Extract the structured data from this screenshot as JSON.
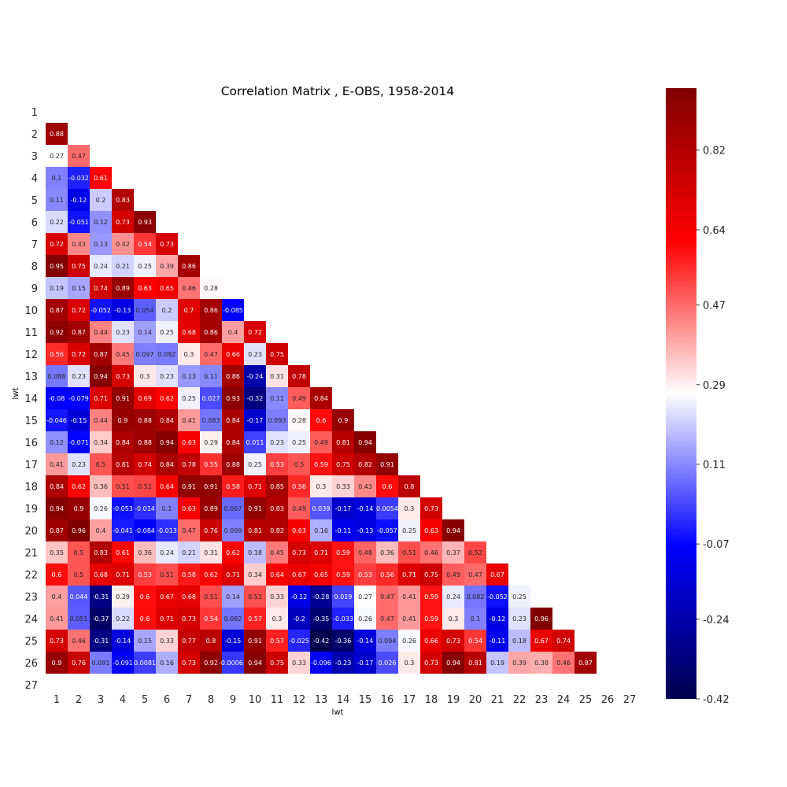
{
  "chart_data": {
    "type": "heatmap",
    "title": "Correlation Matrix , E-OBS, 1958-2014",
    "xlabel": "lwt",
    "ylabel": "lwt",
    "labels": [
      "1",
      "2",
      "3",
      "4",
      "5",
      "6",
      "7",
      "8",
      "9",
      "10",
      "11",
      "12",
      "13",
      "14",
      "15",
      "16",
      "17",
      "18",
      "19",
      "20",
      "21",
      "22",
      "23",
      "24",
      "25",
      "26",
      "27"
    ],
    "mask": "upper triangle and diagonal hidden",
    "colormap": "seismic",
    "vmin": -0.42,
    "vmax": 0.96,
    "colorbar_ticks": [
      "-0.42",
      "-0.24",
      "-0.07",
      "0.11",
      "0.29",
      "0.47",
      "0.64",
      "0.82"
    ],
    "rows": [
      [],
      [
        0.88
      ],
      [
        0.27,
        0.47
      ],
      [
        0.1,
        -0.032,
        0.61
      ],
      [
        0.11,
        -0.12,
        0.2,
        0.83
      ],
      [
        0.22,
        -0.051,
        0.12,
        0.73,
        0.93
      ],
      [
        0.72,
        0.43,
        0.13,
        0.42,
        0.54,
        0.73
      ],
      [
        0.95,
        0.75,
        0.24,
        0.21,
        0.25,
        0.39,
        0.86
      ],
      [
        0.19,
        0.15,
        0.74,
        0.89,
        0.63,
        0.65,
        0.46,
        0.28
      ],
      [
        0.87,
        0.72,
        -0.052,
        -0.13,
        0.054,
        0.2,
        0.7,
        0.86,
        -0.085
      ],
      [
        0.92,
        0.87,
        0.44,
        0.23,
        0.14,
        0.25,
        0.68,
        0.86,
        0.4,
        0.72
      ],
      [
        0.56,
        0.72,
        0.87,
        0.45,
        0.097,
        0.092,
        0.3,
        0.47,
        0.66,
        0.23,
        0.75
      ],
      [
        0.088,
        0.23,
        0.94,
        0.73,
        0.3,
        0.23,
        0.13,
        0.11,
        0.86,
        -0.24,
        0.31,
        0.78
      ],
      [
        -0.08,
        -0.079,
        0.71,
        0.91,
        0.69,
        0.62,
        0.25,
        0.027,
        0.93,
        -0.32,
        0.11,
        0.49,
        0.84
      ],
      [
        -0.046,
        -0.15,
        0.44,
        0.9,
        0.88,
        0.84,
        0.41,
        0.083,
        0.84,
        -0.17,
        0.093,
        0.28,
        0.6,
        0.9
      ],
      [
        0.12,
        -0.071,
        0.34,
        0.84,
        0.88,
        0.94,
        0.63,
        0.29,
        0.84,
        0.011,
        0.23,
        0.25,
        0.49,
        0.81,
        0.94
      ],
      [
        0.41,
        0.23,
        0.5,
        0.81,
        0.74,
        0.84,
        0.78,
        0.55,
        0.88,
        0.25,
        0.53,
        0.5,
        0.59,
        0.75,
        0.82,
        0.91
      ],
      [
        0.84,
        0.62,
        0.36,
        0.51,
        0.52,
        0.64,
        0.91,
        0.91,
        0.58,
        0.71,
        0.85,
        0.56,
        0.3,
        0.33,
        0.43,
        0.6,
        0.8
      ],
      [
        0.94,
        0.9,
        0.26,
        -0.053,
        -0.014,
        0.1,
        0.63,
        0.89,
        0.067,
        0.91,
        0.83,
        0.49,
        0.039,
        -0.17,
        -0.14,
        0.0054,
        0.3,
        0.73
      ],
      [
        0.87,
        0.96,
        0.4,
        -0.041,
        -0.084,
        -0.013,
        0.47,
        0.76,
        0.099,
        0.81,
        0.82,
        0.63,
        0.16,
        -0.11,
        -0.13,
        -0.057,
        0.25,
        0.63,
        0.94
      ],
      [
        0.35,
        0.5,
        0.83,
        0.61,
        0.36,
        0.24,
        0.21,
        0.31,
        0.62,
        0.18,
        0.45,
        0.73,
        0.71,
        0.59,
        0.48,
        0.36,
        0.51,
        0.46,
        0.37,
        0.52
      ],
      [
        0.6,
        0.5,
        0.68,
        0.71,
        0.53,
        0.51,
        0.58,
        0.62,
        0.71,
        0.34,
        0.64,
        0.67,
        0.65,
        0.59,
        0.53,
        0.56,
        0.71,
        0.75,
        0.49,
        0.47,
        0.67
      ],
      [
        0.4,
        0.044,
        -0.31,
        0.29,
        0.6,
        0.67,
        0.68,
        0.51,
        0.14,
        0.51,
        0.33,
        -0.12,
        -0.28,
        0.019,
        0.27,
        0.47,
        0.41,
        0.59,
        0.24,
        0.082,
        -0.052,
        0.25
      ],
      [
        0.41,
        0.051,
        -0.37,
        0.22,
        0.6,
        0.71,
        0.73,
        0.54,
        0.082,
        0.57,
        0.3,
        -0.2,
        -0.35,
        -0.033,
        0.26,
        0.47,
        0.41,
        0.59,
        0.3,
        0.1,
        -0.12,
        0.23,
        0.96
      ],
      [
        0.73,
        0.46,
        -0.31,
        -0.14,
        0.15,
        0.33,
        0.77,
        0.8,
        -0.15,
        0.91,
        0.57,
        -0.025,
        -0.42,
        -0.36,
        -0.14,
        0.094,
        0.26,
        0.66,
        0.73,
        0.54,
        -0.11,
        0.18,
        0.67,
        0.74
      ],
      [
        0.9,
        0.76,
        0.091,
        -0.091,
        0.0081,
        0.16,
        0.73,
        0.92,
        -0.00061,
        0.94,
        0.75,
        0.33,
        -0.096,
        -0.23,
        -0.17,
        0.026,
        0.3,
        0.73,
        0.94,
        0.81,
        0.19,
        0.39,
        0.38,
        0.46,
        0.87
      ],
      []
    ]
  }
}
